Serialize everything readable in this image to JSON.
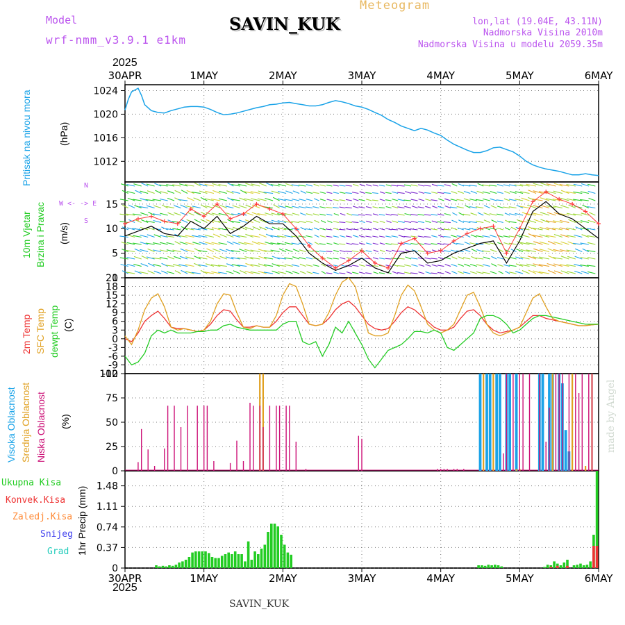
{
  "header": {
    "model_label": "Model",
    "model_name": "wrf-nmm_v3.9.1 e1km",
    "station": "SAVIN_KUK",
    "product": "Meteogram",
    "coords": "lon,lat (19.04E, 43.11N)",
    "altitude": "Nadmorska Visina 2010m",
    "model_altitude": "Nadmorska Visina u modelu 2059.35m"
  },
  "footer": {
    "station": "SAVIN_KUK",
    "credit": "made by Angel"
  },
  "colors": {
    "pressure": "#1aa3e8",
    "wind_speed": "#000000",
    "wind_gust": "#ff3a3a",
    "t2m": "#ee3333",
    "tsfc": "#e0a020",
    "tdew": "#22cc22",
    "cloud_high": "#1aa3e8",
    "cloud_mid": "#e0a020",
    "cloud_low": "#cc1177",
    "precip_total": "#22cc22",
    "precip_conv": "#ee3333",
    "frame": "#000000",
    "grid": "#777777"
  },
  "time_axis": {
    "year_top": "2025",
    "year_bottom": "2025",
    "ticks": [
      "30APR",
      "1MAY",
      "2MAY",
      "3MAY",
      "4MAY",
      "5MAY",
      "6MAY"
    ],
    "range_hours": [
      0,
      144
    ]
  },
  "chart_data": [
    {
      "type": "line",
      "panel": "pressure",
      "ylabel_top": "Pritisak na nivou mora",
      "ylabel_unit": "(hPa)",
      "ylim": [
        1008.5,
        1025
      ],
      "yticks": [
        "1012",
        "1016",
        "1020",
        "1024"
      ],
      "x_hours": [
        0,
        1,
        2,
        3,
        4,
        5,
        6,
        8,
        10,
        12,
        14,
        16,
        18,
        20,
        22,
        24,
        26,
        28,
        30,
        32,
        34,
        36,
        38,
        40,
        42,
        44,
        46,
        48,
        50,
        52,
        54,
        56,
        58,
        60,
        62,
        64,
        66,
        68,
        70,
        72,
        74,
        76,
        78,
        80,
        82,
        84,
        86,
        88,
        90,
        92,
        94,
        96,
        98,
        100,
        102,
        104,
        106,
        108,
        110,
        112,
        114,
        116,
        118,
        120,
        122,
        124,
        126,
        128,
        130,
        132,
        134,
        136,
        138,
        140,
        142,
        144
      ],
      "series": [
        {
          "values": [
            1020.7,
            1022.5,
            1023.8,
            1024.1,
            1024.4,
            1023.2,
            1021.6,
            1020.6,
            1020.3,
            1020.2,
            1020.6,
            1020.9,
            1021.2,
            1021.3,
            1021.3,
            1021.2,
            1020.8,
            1020.3,
            1019.9,
            1020.0,
            1020.2,
            1020.5,
            1020.8,
            1021.1,
            1021.3,
            1021.6,
            1021.7,
            1021.9,
            1022.0,
            1021.8,
            1021.6,
            1021.4,
            1021.4,
            1021.6,
            1022.0,
            1022.3,
            1022.1,
            1021.8,
            1021.4,
            1021.2,
            1020.8,
            1020.3,
            1019.8,
            1019.1,
            1018.6,
            1018.0,
            1017.6,
            1017.2,
            1017.6,
            1017.3,
            1016.8,
            1016.4,
            1015.6,
            1014.9,
            1014.4,
            1013.9,
            1013.5,
            1013.5,
            1013.8,
            1014.3,
            1014.4,
            1014.0,
            1013.6,
            1012.9,
            1012.0,
            1011.4,
            1011.0,
            1010.7,
            1010.5,
            1010.3,
            1010.0,
            1009.7,
            1009.7,
            1009.9,
            1009.7,
            1009.6
          ]
        }
      ]
    },
    {
      "type": "line",
      "panel": "wind",
      "ylabel_top": "10m Vjetar",
      "ylabel_bottom": "Brzina i Pravac",
      "ylabel_unit": "(m/s)",
      "compass": "N",
      "compass_row": "W <- -> E",
      "compass_bottom": "S",
      "ylim": [
        0,
        19.5
      ],
      "yticks": [
        "0",
        "5",
        "10",
        "15"
      ],
      "x_hours": [
        0,
        4,
        8,
        12,
        16,
        20,
        24,
        28,
        32,
        36,
        40,
        44,
        48,
        52,
        56,
        60,
        64,
        68,
        72,
        76,
        80,
        84,
        88,
        92,
        96,
        100,
        104,
        108,
        112,
        116,
        120,
        124,
        128,
        132,
        136,
        140,
        144
      ],
      "series": [
        {
          "name": "speed",
          "values": [
            8.5,
            9.5,
            10.5,
            9.0,
            8.5,
            11.5,
            10.0,
            12.5,
            9.0,
            10.5,
            12.5,
            11.0,
            11.0,
            8.5,
            5.0,
            3.0,
            1.5,
            2.5,
            4.0,
            2.0,
            1.0,
            5.0,
            5.5,
            3.0,
            3.5,
            5.0,
            6.0,
            7.0,
            7.5,
            3.0,
            7.5,
            13.5,
            15.5,
            13.0,
            12.0,
            10.0,
            8.0
          ]
        },
        {
          "name": "gust",
          "values": [
            11.0,
            12.0,
            12.5,
            11.5,
            11.0,
            14.0,
            12.5,
            15.0,
            12.0,
            13.0,
            15.0,
            14.0,
            13.0,
            10.0,
            6.5,
            4.0,
            2.0,
            3.5,
            5.5,
            3.0,
            2.0,
            7.0,
            8.0,
            5.0,
            5.5,
            7.5,
            9.0,
            10.0,
            10.5,
            5.0,
            10.0,
            15.5,
            17.5,
            16.0,
            15.0,
            13.5,
            11.0
          ]
        }
      ]
    },
    {
      "type": "line",
      "panel": "temperature",
      "ylabel_series": [
        "2m Temp",
        "SFC Temp",
        "dewpt Temp"
      ],
      "ylabel_unit": "(C)",
      "ylim": [
        -12,
        21
      ],
      "yticks": [
        "-12",
        "-9",
        "-6",
        "-3",
        "0",
        "3",
        "6",
        "9",
        "12",
        "15",
        "18",
        "21"
      ],
      "x_hours": [
        0,
        2,
        4,
        6,
        8,
        10,
        12,
        14,
        16,
        18,
        20,
        22,
        24,
        26,
        28,
        30,
        32,
        34,
        36,
        38,
        40,
        42,
        44,
        46,
        48,
        50,
        52,
        54,
        56,
        58,
        60,
        62,
        64,
        66,
        68,
        70,
        72,
        74,
        76,
        78,
        80,
        82,
        84,
        86,
        88,
        90,
        92,
        94,
        96,
        98,
        100,
        102,
        104,
        106,
        108,
        110,
        112,
        114,
        116,
        118,
        120,
        122,
        124,
        126,
        128,
        130,
        132,
        134,
        136,
        138,
        140,
        142,
        144
      ],
      "series": [
        {
          "name": "2m Temp",
          "values": [
            0.0,
            -1.0,
            2.0,
            6.0,
            8.0,
            9.5,
            7.0,
            4.0,
            3.5,
            3.5,
            3.0,
            2.5,
            3.0,
            5.0,
            8.0,
            10.0,
            9.5,
            6.5,
            4.0,
            4.0,
            4.5,
            4.0,
            4.0,
            6.0,
            9.0,
            11.0,
            11.0,
            8.0,
            5.0,
            4.5,
            5.0,
            7.0,
            10.0,
            12.0,
            13.0,
            11.0,
            8.0,
            5.0,
            3.5,
            3.0,
            3.5,
            6.0,
            9.0,
            11.0,
            10.0,
            8.0,
            6.0,
            4.0,
            3.0,
            3.0,
            4.0,
            7.0,
            9.5,
            10.0,
            8.0,
            5.0,
            3.0,
            2.0,
            2.5,
            3.0,
            4.0,
            6.0,
            8.0,
            8.0,
            7.0,
            6.5,
            6.0,
            5.5,
            5.0,
            4.5,
            4.5,
            4.8,
            5.0
          ]
        },
        {
          "name": "SFC Temp",
          "values": [
            1.0,
            -2.0,
            3.0,
            10.0,
            14.0,
            15.5,
            11.0,
            4.0,
            3.0,
            3.5,
            3.0,
            2.5,
            3.0,
            6.0,
            12.0,
            15.5,
            15.0,
            9.0,
            4.0,
            3.5,
            4.5,
            4.0,
            4.0,
            8.0,
            15.0,
            19.0,
            18.0,
            12.0,
            5.0,
            4.5,
            5.0,
            9.0,
            15.0,
            19.5,
            21.0,
            18.0,
            10.0,
            2.0,
            1.0,
            1.0,
            2.0,
            8.0,
            15.0,
            18.5,
            16.5,
            11.0,
            5.0,
            3.0,
            2.0,
            3.0,
            5.0,
            10.0,
            15.0,
            16.0,
            11.0,
            5.0,
            2.0,
            1.0,
            2.0,
            3.0,
            4.0,
            9.0,
            14.0,
            15.5,
            11.0,
            7.0,
            6.0,
            5.5,
            5.0,
            4.5,
            4.5,
            4.8,
            5.0
          ]
        },
        {
          "name": "dewpt Temp",
          "values": [
            -6.0,
            -9.0,
            -8.0,
            -5.0,
            1.0,
            3.0,
            2.0,
            3.0,
            2.0,
            2.0,
            2.0,
            2.5,
            2.5,
            3.0,
            3.0,
            4.5,
            5.0,
            4.0,
            3.5,
            3.0,
            3.0,
            3.0,
            3.0,
            3.0,
            5.0,
            6.0,
            6.0,
            -1.0,
            -2.0,
            -1.0,
            -6.0,
            -2.0,
            4.0,
            2.0,
            6.0,
            2.0,
            -2.0,
            -7.0,
            -10.0,
            -7.0,
            -4.0,
            -3.0,
            -2.0,
            0.0,
            2.5,
            2.5,
            2.0,
            3.0,
            2.0,
            -3.0,
            -4.0,
            -2.0,
            0.0,
            2.0,
            7.0,
            8.0,
            8.0,
            7.0,
            5.0,
            2.0,
            3.0,
            5.0,
            7.0,
            8.0,
            8.0,
            7.5,
            7.0,
            6.5,
            6.0,
            5.5,
            5.0,
            5.0,
            5.0
          ]
        }
      ]
    },
    {
      "type": "bar",
      "panel": "clouds",
      "ylabel_series": [
        "Visoka Oblacnost",
        "Srednja Oblacnost",
        "Niska Oblacnost"
      ],
      "ylabel_unit": "(%)",
      "ylim": [
        0,
        100
      ],
      "yticks": [
        "0",
        "25",
        "50",
        "75",
        "100"
      ],
      "series": [
        {
          "name": "Niska Oblacnost",
          "x_hours": [
            4,
            5,
            7,
            9,
            12,
            13,
            15,
            17,
            19,
            22,
            24,
            25,
            27,
            32,
            34,
            36,
            38,
            39,
            41,
            42,
            44,
            46,
            47,
            49,
            50,
            52,
            55,
            71,
            72,
            95,
            96,
            97,
            98,
            100,
            101,
            103,
            115,
            116,
            118,
            120,
            121,
            123,
            126,
            128,
            129,
            131,
            132,
            133,
            135,
            137,
            138,
            139,
            141,
            142
          ],
          "values": [
            9,
            43,
            22,
            5,
            23,
            67,
            67,
            45,
            67,
            67,
            67,
            67,
            10,
            8,
            31,
            10,
            70,
            67,
            67,
            45,
            67,
            67,
            67,
            67,
            67,
            30,
            2,
            36,
            33,
            2,
            2,
            2,
            2,
            2,
            2,
            2,
            18,
            100,
            100,
            100,
            100,
            100,
            100,
            30,
            65,
            100,
            100,
            100,
            100,
            100,
            80,
            100,
            100,
            100
          ]
        },
        {
          "name": "Srednja Oblacnost",
          "x_hours": [
            41,
            42,
            109,
            112,
            119,
            120,
            130,
            136,
            140,
            142
          ],
          "values": [
            100,
            100,
            100,
            100,
            2,
            2,
            100,
            100,
            5,
            100
          ]
        },
        {
          "name": "Visoka Oblacnost",
          "x_hours": [
            108,
            110,
            111,
            113,
            114,
            116,
            117,
            119,
            126,
            127,
            129,
            130,
            132,
            133,
            134,
            135
          ],
          "values": [
            100,
            100,
            100,
            100,
            100,
            100,
            100,
            100,
            100,
            100,
            100,
            100,
            100,
            90,
            42,
            20
          ]
        }
      ]
    },
    {
      "type": "bar",
      "panel": "precipitation",
      "ylabel_series": [
        "Ukupna Kisa",
        "Konvek.Kisa",
        "Zaledj.Kisa",
        "Snijeg",
        "Grad"
      ],
      "ylabel_unit": "1hr Precip (mm)",
      "ylim": [
        0,
        1.75
      ],
      "yticks": [
        "0",
        "0.37",
        "0.74",
        "1.11",
        "1.48"
      ],
      "series": [
        {
          "name": "Ukupna Kisa",
          "x_hours": [
            9.5,
            10.5,
            11.5,
            12.5,
            13.5,
            14.5,
            15.5,
            16.5,
            17.5,
            18.5,
            19.5,
            20.5,
            21.5,
            22.5,
            23.5,
            24.5,
            25.5,
            26.5,
            27.5,
            28.5,
            29.5,
            30.5,
            31.5,
            32.5,
            33.5,
            34.5,
            35.5,
            36.5,
            37.5,
            38.5,
            39.5,
            40.5,
            41.5,
            42.5,
            43.5,
            44.5,
            45.5,
            46.5,
            47.5,
            48.5,
            49.5,
            50.5,
            107.5,
            108.5,
            109.5,
            110.5,
            111.5,
            112.5,
            113.5,
            114.5,
            127.5,
            128.5,
            129.5,
            130.5,
            131.5,
            132.5,
            133.5,
            134.5,
            136.5,
            137.5,
            138.5,
            139.5,
            140.5,
            141.5,
            142.5,
            143.5
          ],
          "values": [
            0.05,
            0.03,
            0.04,
            0.03,
            0.05,
            0.04,
            0.06,
            0.1,
            0.12,
            0.15,
            0.2,
            0.28,
            0.3,
            0.3,
            0.3,
            0.3,
            0.27,
            0.2,
            0.18,
            0.18,
            0.22,
            0.25,
            0.28,
            0.25,
            0.3,
            0.25,
            0.25,
            0.12,
            0.48,
            0.15,
            0.3,
            0.25,
            0.35,
            0.42,
            0.65,
            0.8,
            0.8,
            0.75,
            0.6,
            0.42,
            0.28,
            0.24,
            0.05,
            0.05,
            0.04,
            0.06,
            0.05,
            0.06,
            0.05,
            0.03,
            0.02,
            0.06,
            0.05,
            0.12,
            0.08,
            0.05,
            0.1,
            0.15,
            0.05,
            0.06,
            0.08,
            0.05,
            0.06,
            0.12,
            0.6,
            1.75
          ]
        },
        {
          "name": "Konvek.Kisa",
          "x_hours": [
            129.5,
            131.5,
            134.5,
            142.5,
            143.5
          ],
          "values": [
            0.02,
            0.04,
            0.04,
            0.4,
            0.4
          ]
        }
      ]
    }
  ]
}
